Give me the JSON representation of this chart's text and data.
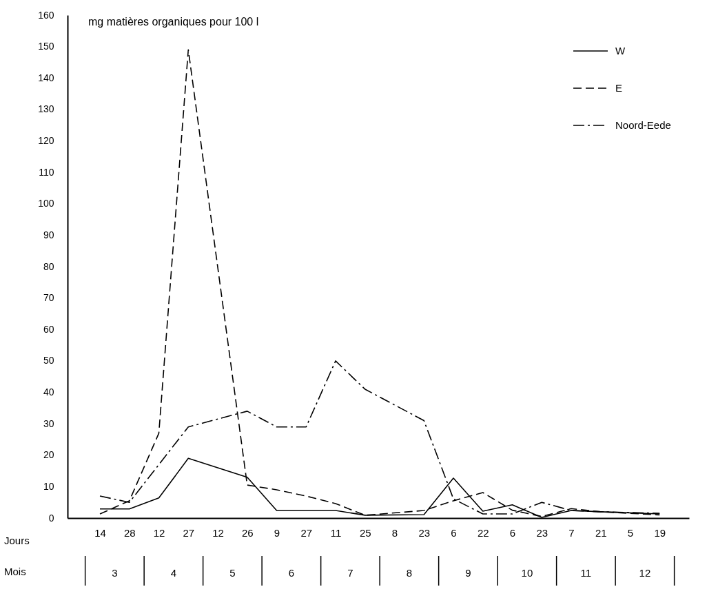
{
  "chart_data": {
    "type": "line",
    "ylabel": "mg matières organiques pour 100 l",
    "xlabel": "Jours",
    "categories": [
      "14",
      "28",
      "12",
      "27",
      "12",
      "26",
      "9",
      "27",
      "11",
      "25",
      "8",
      "23",
      "6",
      "22",
      "6",
      "23",
      "7",
      "21",
      "5",
      "19"
    ],
    "series": [
      {
        "name": "W",
        "color": "#000000",
        "line_style": "solid",
        "values": [
          2.9,
          2.9,
          6.4,
          19,
          null,
          13,
          2.4,
          2.4,
          2.4,
          0.9,
          null,
          1.1,
          12.7,
          2.2,
          4.2,
          0.2,
          2.4,
          2,
          null,
          1.3
        ]
      },
      {
        "name": "E",
        "color": "#000000",
        "line_style": "dashed",
        "values": [
          1.3,
          5.5,
          27,
          149,
          null,
          10.5,
          9,
          7,
          4.6,
          0.9,
          null,
          2.4,
          5.5,
          8.1,
          2.5,
          0.5,
          3,
          2,
          null,
          1
        ]
      },
      {
        "name": "Noord-Eede",
        "color": "#000000",
        "line_style": "dashdot",
        "values": [
          7,
          5,
          null,
          29,
          null,
          34,
          29,
          29,
          50,
          41,
          null,
          31,
          6.1,
          1.3,
          1.3,
          5,
          2.4,
          2,
          null,
          1.5
        ]
      }
    ],
    "ylim": [
      0,
      160
    ],
    "yticks": [
      0,
      10,
      20,
      30,
      40,
      50,
      60,
      70,
      80,
      90,
      100,
      110,
      120,
      130,
      140,
      150,
      160
    ],
    "legend": "top right",
    "grid": false,
    "marker": "none",
    "annotations": [
      "Mois",
      "3",
      "4",
      "5",
      "6",
      "7",
      "8",
      "9",
      "10",
      "11",
      "12"
    ]
  }
}
